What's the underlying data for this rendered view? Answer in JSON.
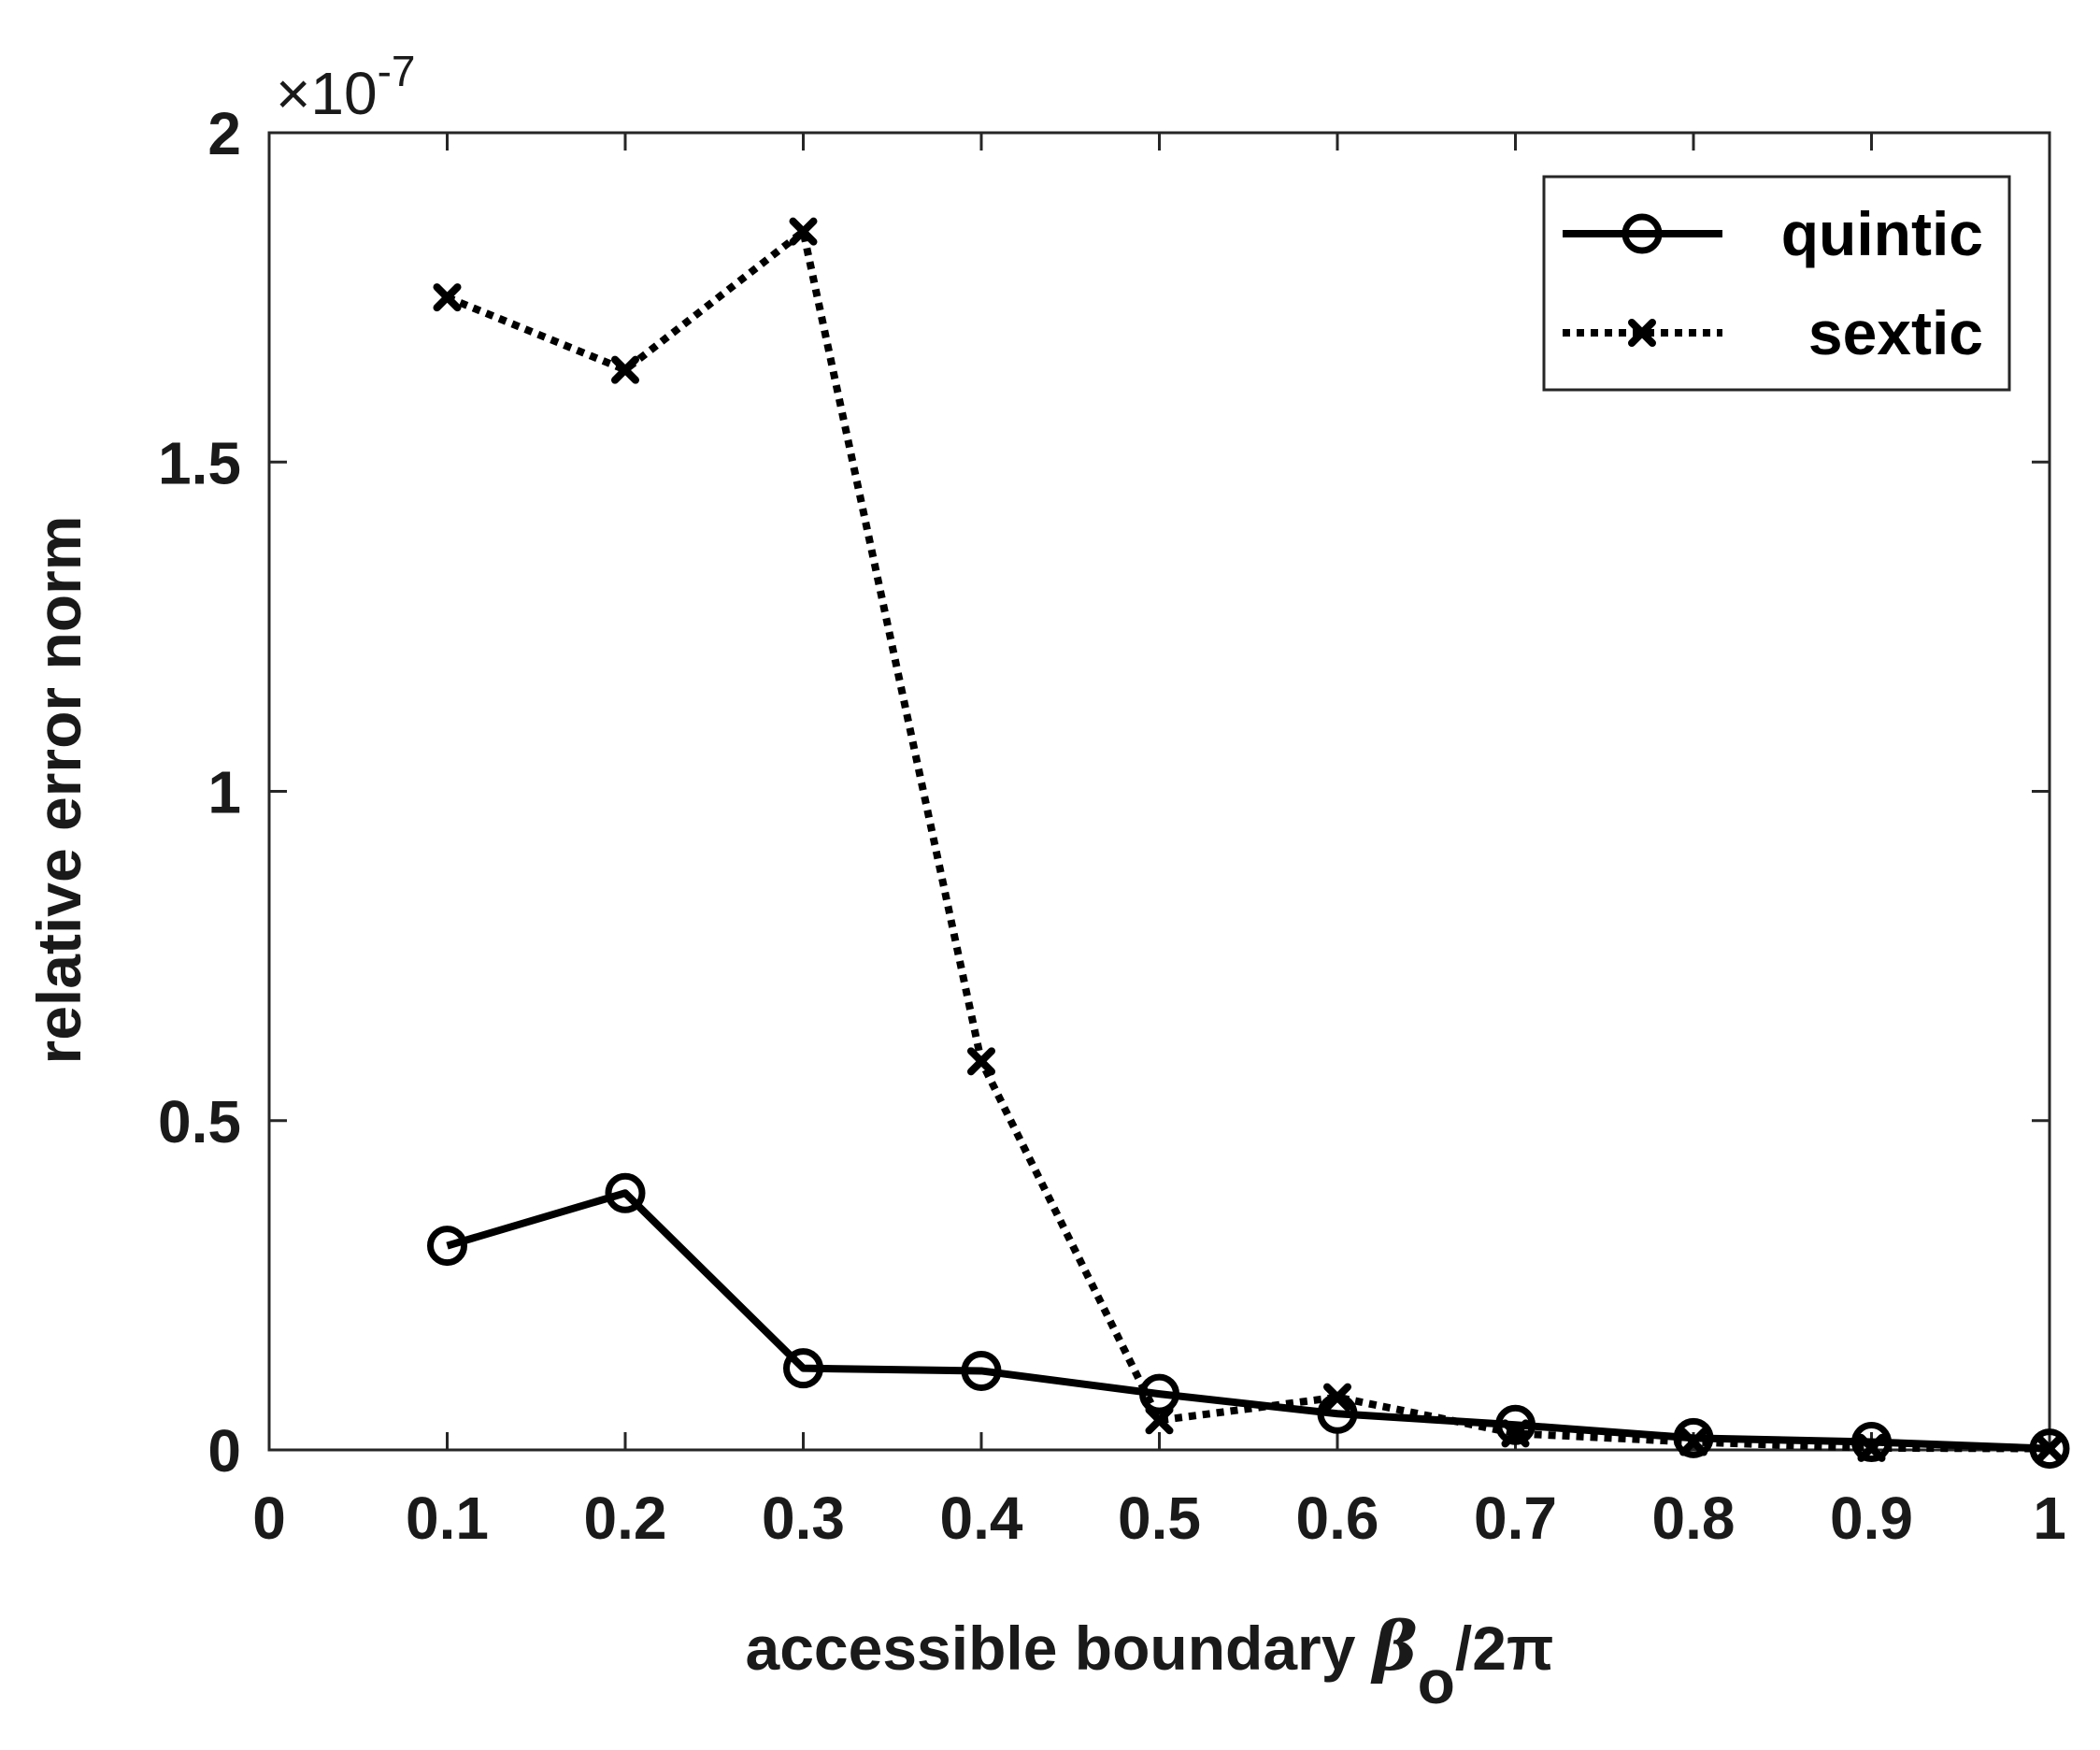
{
  "chart_data": {
    "type": "line",
    "title": "",
    "xlabel": {
      "prefix": "accessible boundary ",
      "symbol": "β",
      "subscript": "o",
      "suffix": "/2π"
    },
    "ylabel": "relative error norm",
    "y_exponent": {
      "base": "×10",
      "power": "-7"
    },
    "xlim": [
      0,
      1
    ],
    "ylim": [
      0,
      2
    ],
    "xticks": [
      "0",
      "0.1",
      "0.2",
      "0.3",
      "0.4",
      "0.5",
      "0.6",
      "0.7",
      "0.8",
      "0.9",
      "1"
    ],
    "yticks": [
      "0",
      "0.5",
      "1",
      "1.5",
      "2"
    ],
    "x": [
      0.1,
      0.2,
      0.3,
      0.4,
      0.5,
      0.6,
      0.7,
      0.8,
      0.9,
      1.0
    ],
    "series": [
      {
        "name": "quintic",
        "marker": "circle",
        "line": "solid",
        "color": "#000000",
        "values": [
          0.31,
          0.39,
          0.124,
          0.12,
          0.085,
          0.055,
          0.038,
          0.018,
          0.012,
          0.002
        ]
      },
      {
        "name": "sextic",
        "marker": "x",
        "line": "dotted",
        "color": "#000000",
        "values": [
          1.75,
          1.64,
          1.85,
          0.59,
          0.045,
          0.08,
          0.025,
          0.012,
          0.003,
          0.002
        ]
      }
    ],
    "grid": false,
    "legend": "top-right"
  }
}
